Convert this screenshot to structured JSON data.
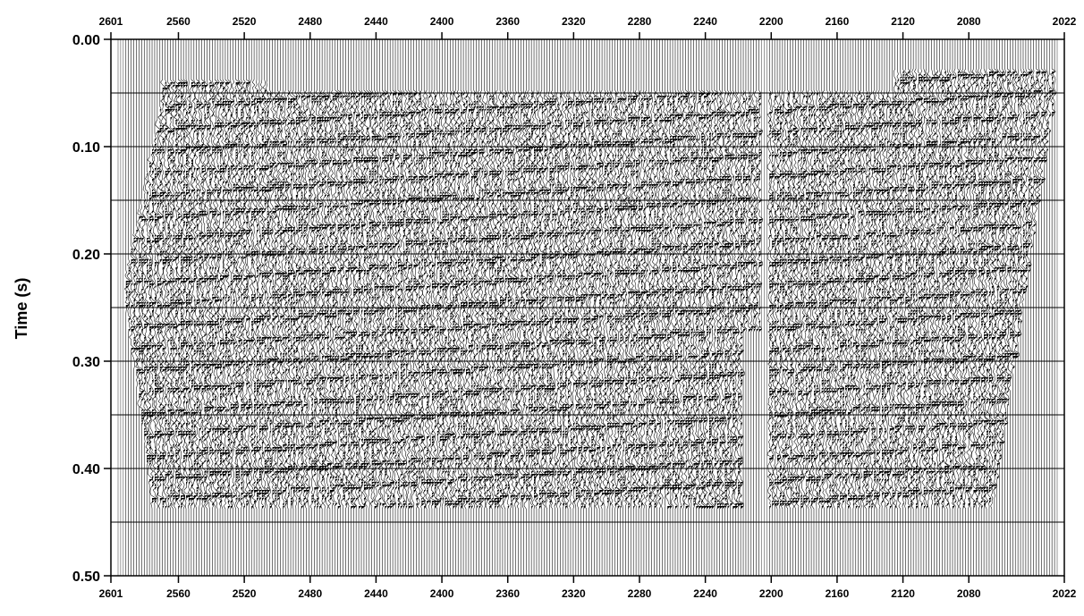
{
  "chart_data": {
    "type": "seismic_wiggle_section",
    "title": "",
    "ylabel": "Time (s)",
    "xlabel": "",
    "x_tick_labels": [
      "2601",
      "2560",
      "2520",
      "2480",
      "2440",
      "2400",
      "2360",
      "2320",
      "2280",
      "2240",
      "2200",
      "2160",
      "2120",
      "2080",
      "2022"
    ],
    "y_tick_labels": [
      "0.00",
      "0.10",
      "0.20",
      "0.30",
      "0.40",
      "0.50"
    ],
    "x_ticks": [
      2601,
      2560,
      2520,
      2480,
      2440,
      2400,
      2360,
      2320,
      2280,
      2240,
      2200,
      2160,
      2120,
      2080,
      2022
    ],
    "xlim": [
      2601,
      2022
    ],
    "ylim": [
      0.0,
      0.5
    ],
    "y_gridlines": [
      0.05,
      0.1,
      0.15,
      0.2,
      0.25,
      0.3,
      0.35,
      0.4,
      0.45
    ],
    "y_axis_direction": "downward",
    "x_axis_position": "top and bottom",
    "colors": {
      "trace": "#000000",
      "background": "#ffffff"
    }
  }
}
